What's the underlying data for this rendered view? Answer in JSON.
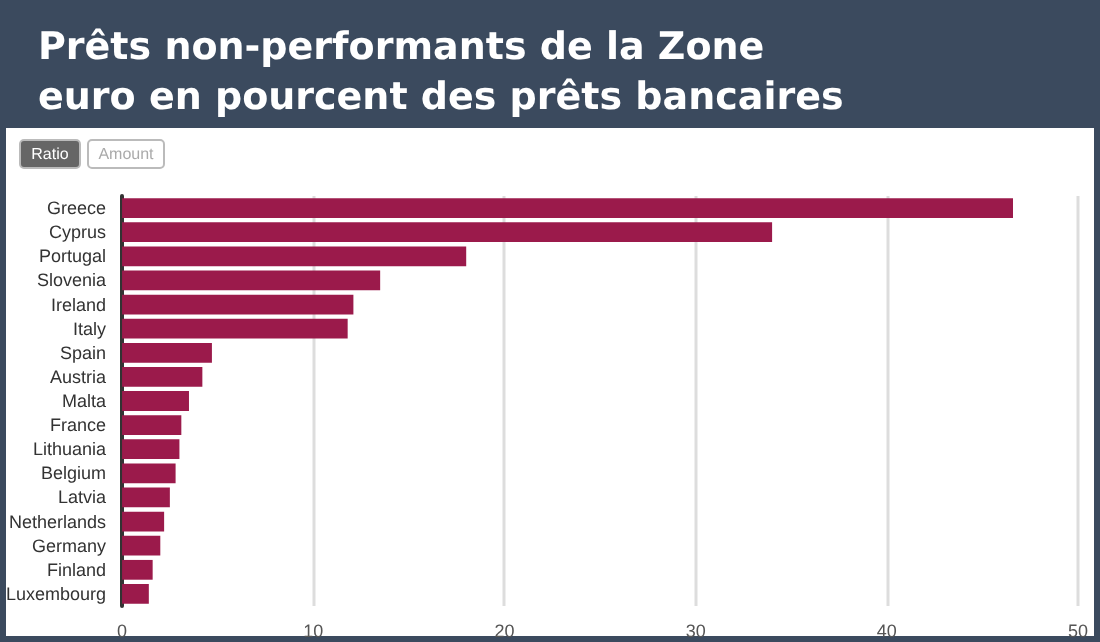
{
  "chart_data": {
    "type": "bar",
    "orientation": "horizontal",
    "title": "Prêts non-performants de la Zone euro en pourcent des prêts bancaires",
    "categories": [
      "Greece",
      "Cyprus",
      "Portugal",
      "Slovenia",
      "Ireland",
      "Italy",
      "Spain",
      "Austria",
      "Malta",
      "France",
      "Lithuania",
      "Belgium",
      "Latvia",
      "Netherlands",
      "Germany",
      "Finland",
      "Luxembourg"
    ],
    "values": [
      46.6,
      34.0,
      18.0,
      13.5,
      12.1,
      11.8,
      4.7,
      4.2,
      3.5,
      3.1,
      3.0,
      2.8,
      2.5,
      2.2,
      2.0,
      1.6,
      1.4
    ],
    "color": "#9b1a4b",
    "xlim": [
      0,
      50
    ],
    "xticks": [
      0,
      10,
      20,
      30,
      40,
      50
    ],
    "grid": "x",
    "annotations": [
      "Ratio",
      "Amount"
    ]
  }
}
